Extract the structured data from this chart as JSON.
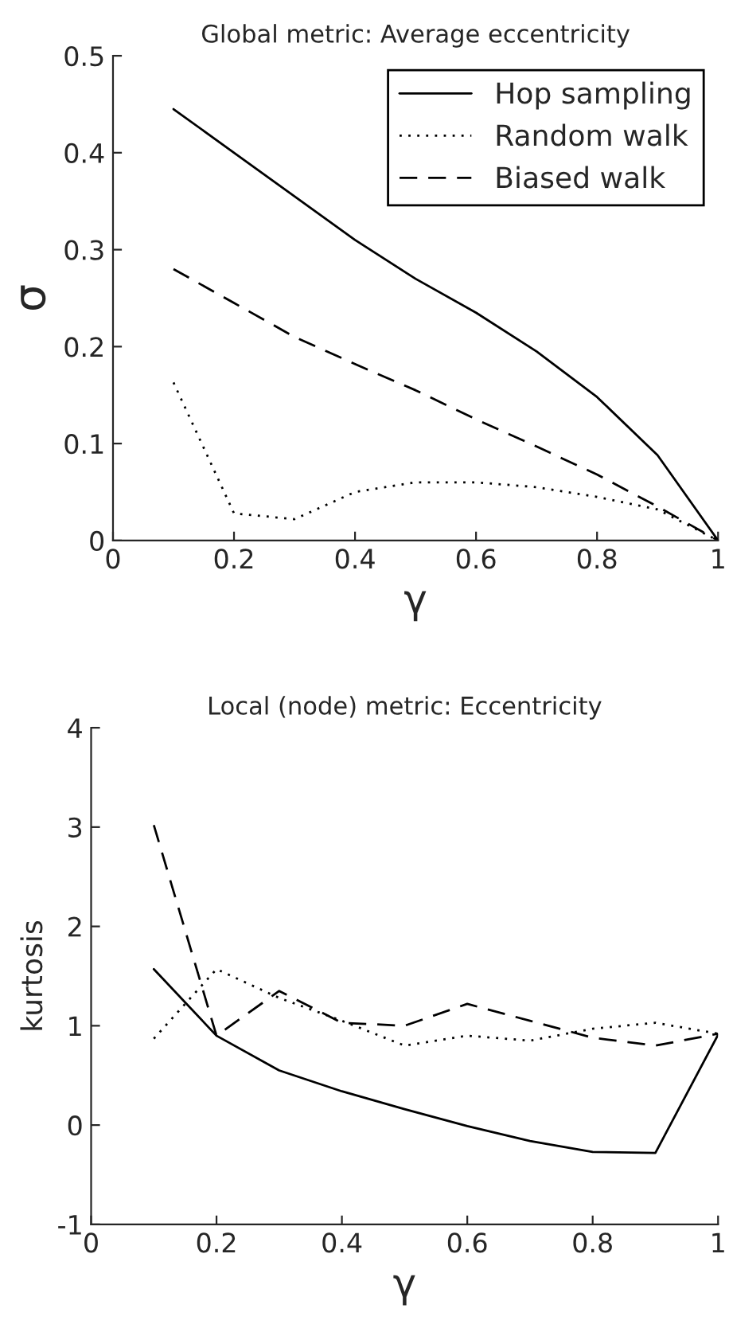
{
  "chart_data": [
    {
      "type": "line",
      "title": "Global metric: Average eccentricity",
      "xlabel": "γ",
      "ylabel": "σ",
      "x": [
        0.1,
        0.2,
        0.3,
        0.4,
        0.5,
        0.6,
        0.7,
        0.8,
        0.9,
        1.0
      ],
      "series": [
        {
          "name": "Hop sampling",
          "color": "#000000",
          "line_style": "solid",
          "values": [
            0.445,
            0.4,
            0.355,
            0.31,
            0.27,
            0.235,
            0.195,
            0.148,
            0.088,
            0.0
          ]
        },
        {
          "name": "Random walk",
          "color": "#000000",
          "line_style": "dotted",
          "values": [
            0.163,
            0.028,
            0.022,
            0.05,
            0.06,
            0.06,
            0.055,
            0.045,
            0.032,
            0.0
          ]
        },
        {
          "name": "Biased walk",
          "color": "#000000",
          "line_style": "dashed",
          "values": [
            0.28,
            0.245,
            0.21,
            0.182,
            0.155,
            0.125,
            0.097,
            0.068,
            0.035,
            0.0
          ]
        }
      ],
      "xlim": [
        0,
        1
      ],
      "ylim": [
        0,
        0.5
      ],
      "xticks": [
        0,
        0.2,
        0.4,
        0.6,
        0.8,
        1
      ],
      "yticks": [
        0,
        0.1,
        0.2,
        0.3,
        0.4,
        0.5
      ],
      "legend": "top right",
      "grid": false
    },
    {
      "type": "line",
      "title": "Local (node) metric: Eccentricity",
      "xlabel": "γ",
      "ylabel": "kurtosis",
      "x": [
        0.1,
        0.2,
        0.3,
        0.4,
        0.5,
        0.6,
        0.7,
        0.8,
        0.9,
        1.0
      ],
      "series": [
        {
          "color": "#000000",
          "line_style": "solid",
          "values": [
            1.57,
            0.9,
            0.55,
            0.34,
            0.16,
            -0.01,
            -0.16,
            -0.27,
            -0.28,
            0.91
          ]
        },
        {
          "color": "#000000",
          "line_style": "dotted",
          "values": [
            0.87,
            1.57,
            1.28,
            1.05,
            0.8,
            0.9,
            0.85,
            0.97,
            1.03,
            0.92
          ]
        },
        {
          "color": "#000000",
          "line_style": "dashed",
          "values": [
            3.02,
            0.9,
            1.35,
            1.03,
            1.0,
            1.22,
            1.05,
            0.88,
            0.8,
            0.92
          ]
        }
      ],
      "xlim": [
        0,
        1
      ],
      "ylim": [
        -1,
        4
      ],
      "xticks": [
        0,
        0.2,
        0.4,
        0.6,
        0.8,
        1
      ],
      "yticks": [
        -1,
        0,
        1,
        2,
        3,
        4
      ],
      "grid": false
    }
  ]
}
